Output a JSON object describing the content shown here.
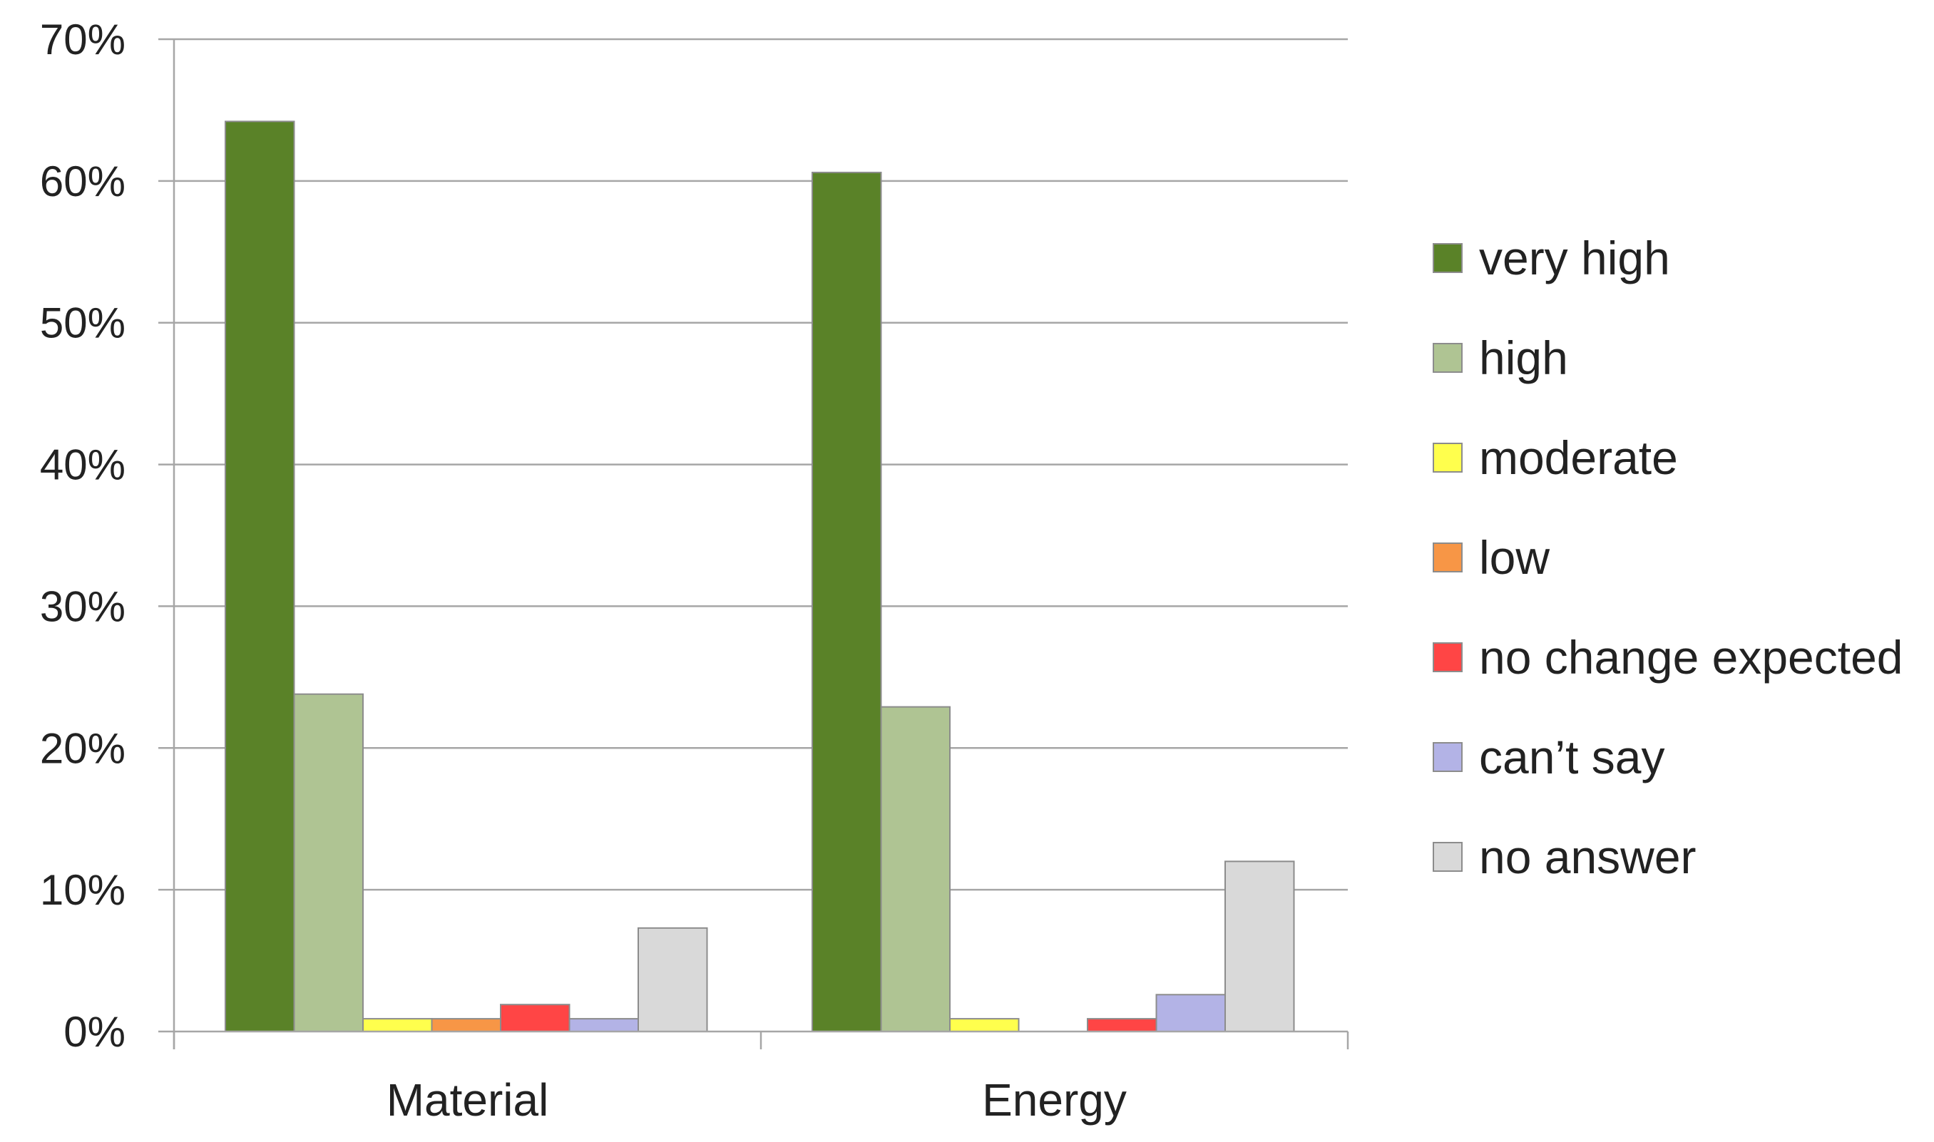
{
  "chart_data": {
    "type": "bar",
    "title": "",
    "xlabel": "",
    "ylabel": "",
    "categories": [
      "Material",
      "Energy"
    ],
    "ylim": [
      0,
      70
    ],
    "y_unit": "%",
    "y_ticks": [
      0,
      10,
      20,
      30,
      40,
      50,
      60,
      70
    ],
    "y_tick_labels": [
      "0%",
      "10%",
      "20%",
      "30%",
      "40%",
      "50%",
      "60%",
      "70%"
    ],
    "grid": true,
    "legend_position": "right",
    "series": [
      {
        "name": "very high",
        "color": "#5a8228",
        "values": [
          64.2,
          60.6
        ]
      },
      {
        "name": "high",
        "color": "#afc493",
        "values": [
          23.8,
          22.9
        ]
      },
      {
        "name": "moderate",
        "color": "#ffff4d",
        "values": [
          0.9,
          0.9
        ]
      },
      {
        "name": "low",
        "color": "#f79646",
        "values": [
          0.9,
          0.0
        ]
      },
      {
        "name": "no change expected",
        "color": "#ff4545",
        "values": [
          1.9,
          0.9
        ]
      },
      {
        "name": "can’t say",
        "color": "#b3b3e6",
        "values": [
          0.9,
          2.6
        ]
      },
      {
        "name": "no answer",
        "color": "#d9d9d9",
        "values": [
          7.3,
          12.0
        ]
      }
    ]
  }
}
